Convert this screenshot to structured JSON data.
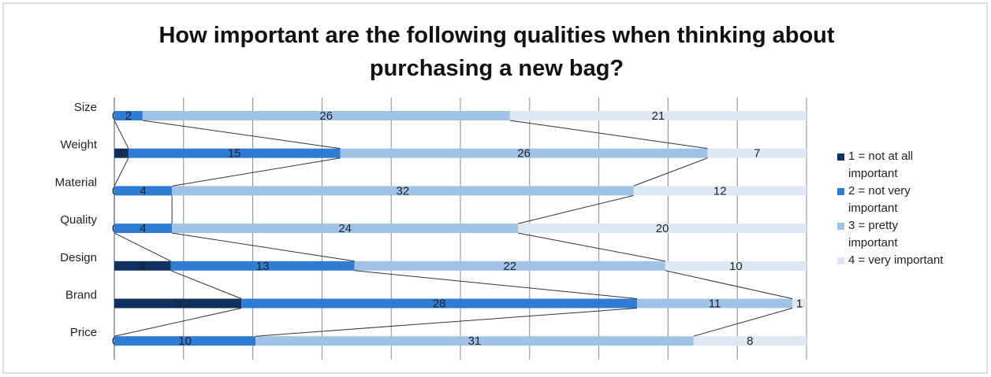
{
  "chart_data": {
    "type": "stacked-bar-100",
    "title": "How important are the following qualities when thinking about purchasing a new bag?",
    "categories": [
      "Size",
      "Weight",
      "Material",
      "Quality",
      "Design",
      "Brand",
      "Price"
    ],
    "series": [
      {
        "name": "1 = not at all important",
        "color": "#10305f",
        "values": [
          0,
          1,
          0,
          0,
          4,
          9,
          0
        ]
      },
      {
        "name": "2 = not very important",
        "color": "#2e7cd3",
        "values": [
          2,
          15,
          4,
          4,
          13,
          28,
          10
        ]
      },
      {
        "name": "3 = pretty important",
        "color": "#9fc2e6",
        "values": [
          26,
          26,
          32,
          24,
          22,
          11,
          31
        ]
      },
      {
        "name": "4 = very important",
        "color": "#dde8f5",
        "values": [
          21,
          7,
          12,
          20,
          10,
          1,
          8
        ]
      }
    ],
    "xlim": [
      0,
      100
    ],
    "xticks": [
      0,
      10,
      20,
      30,
      40,
      50,
      60,
      70,
      80,
      90,
      100
    ],
    "grid": true,
    "legend": "right"
  }
}
